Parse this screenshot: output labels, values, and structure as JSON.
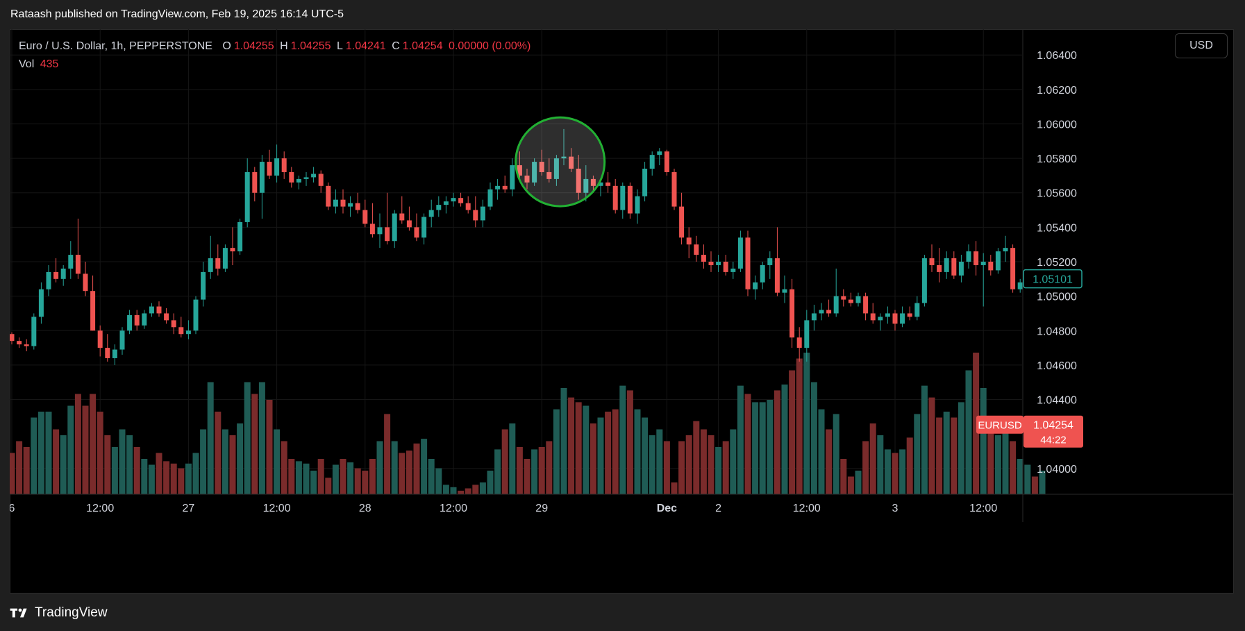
{
  "publish_bar": {
    "text": "Rataash published on TradingView.com, Feb 19, 2025 16:14 UTC-5"
  },
  "legend": {
    "symbol": "Euro / U.S. Dollar, 1h, PEPPERSTONE",
    "o_label": "O",
    "o_value": "1.04255",
    "h_label": "H",
    "h_value": "1.04255",
    "l_label": "L",
    "l_value": "1.04241",
    "c_label": "C",
    "c_value": "1.04254",
    "change": "0.00000 (0.00%)",
    "vol_label": "Vol",
    "vol_value": "435"
  },
  "currency_button": {
    "label": "USD"
  },
  "footer": {
    "brand": "TradingView"
  },
  "colors": {
    "up": "#26a69a",
    "down": "#ef5350",
    "vol_up": "#1f5c55",
    "vol_down": "#7a2b2b",
    "grid": "#161616",
    "axis_text": "#d1d4dc",
    "highlight_ring": "#22b033"
  },
  "chart_data": {
    "type": "candlestick",
    "title": "Euro / U.S. Dollar, 1h, PEPPERSTONE",
    "y_axis": {
      "range": [
        1.0385,
        1.0655
      ],
      "ticks": [
        "1.06400",
        "1.06200",
        "1.06000",
        "1.05800",
        "1.05600",
        "1.05400",
        "1.05200",
        "1.05000",
        "1.04800",
        "1.04600",
        "1.04400",
        "1.04000"
      ]
    },
    "x_axis": {
      "ticks": [
        {
          "label": "6",
          "index": 0
        },
        {
          "label": "12:00",
          "index": 12
        },
        {
          "label": "27",
          "index": 24
        },
        {
          "label": "12:00",
          "index": 36
        },
        {
          "label": "28",
          "index": 48
        },
        {
          "label": "12:00",
          "index": 60
        },
        {
          "label": "29",
          "index": 72
        },
        {
          "label": "Dec",
          "index": 89,
          "bold": true
        },
        {
          "label": "2",
          "index": 96
        },
        {
          "label": "12:00",
          "index": 108
        },
        {
          "label": "3",
          "index": 120
        },
        {
          "label": "12:00",
          "index": 132
        }
      ]
    },
    "price_labels": {
      "last_price": "1.05101",
      "symbol_tag": "EURUSD",
      "current_price": "1.04254",
      "countdown": "44:22"
    },
    "highlight": {
      "center_index": 74.5,
      "center_price": 1.0578,
      "note": "circled wick rejection"
    },
    "candles": [
      [
        1.0478,
        1.0479,
        1.0472,
        1.0474,
        0.35
      ],
      [
        1.0474,
        1.0476,
        1.047,
        1.0472,
        0.45
      ],
      [
        1.0472,
        1.0475,
        1.0468,
        1.0471,
        0.4
      ],
      [
        1.0471,
        1.049,
        1.0469,
        1.0488,
        0.65
      ],
      [
        1.0488,
        1.0508,
        1.0484,
        1.0504,
        0.7
      ],
      [
        1.0504,
        1.0518,
        1.05,
        1.0514,
        0.7
      ],
      [
        1.0514,
        1.0522,
        1.0508,
        1.051,
        0.55
      ],
      [
        1.051,
        1.0518,
        1.0506,
        1.0516,
        0.5
      ],
      [
        1.0516,
        1.0532,
        1.051,
        1.0524,
        0.75
      ],
      [
        1.0524,
        1.0545,
        1.051,
        1.0513,
        0.85
      ],
      [
        1.0513,
        1.052,
        1.05,
        1.0503,
        0.75
      ],
      [
        1.0503,
        1.0512,
        1.048,
        1.048,
        0.85
      ],
      [
        1.048,
        1.0483,
        1.0465,
        1.047,
        0.7
      ],
      [
        1.047,
        1.0478,
        1.0462,
        1.0464,
        0.5
      ],
      [
        1.0464,
        1.0472,
        1.046,
        1.0469,
        0.4
      ],
      [
        1.0469,
        1.0482,
        1.0466,
        1.048,
        0.55
      ],
      [
        1.048,
        1.0492,
        1.0478,
        1.0489,
        0.5
      ],
      [
        1.0489,
        1.0492,
        1.048,
        1.0483,
        0.4
      ],
      [
        1.0483,
        1.0492,
        1.0481,
        1.049,
        0.3
      ],
      [
        1.049,
        1.0496,
        1.0488,
        1.0494,
        0.25
      ],
      [
        1.0494,
        1.0497,
        1.0488,
        1.049,
        0.35
      ],
      [
        1.049,
        1.0493,
        1.0484,
        1.0486,
        0.28
      ],
      [
        1.0486,
        1.049,
        1.0478,
        1.0482,
        0.26
      ],
      [
        1.0482,
        1.0488,
        1.0476,
        1.0478,
        0.22
      ],
      [
        1.0478,
        1.0486,
        1.0475,
        1.048,
        0.26
      ],
      [
        1.048,
        1.05,
        1.0478,
        1.0498,
        0.35
      ],
      [
        1.0498,
        1.052,
        1.0494,
        1.0514,
        0.55
      ],
      [
        1.0514,
        1.0535,
        1.051,
        1.0522,
        0.95
      ],
      [
        1.0522,
        1.053,
        1.0512,
        1.0516,
        0.7
      ],
      [
        1.0516,
        1.053,
        1.0514,
        1.0528,
        0.55
      ],
      [
        1.0528,
        1.054,
        1.0518,
        1.0526,
        0.5
      ],
      [
        1.0526,
        1.0545,
        1.0524,
        1.0543,
        0.6
      ],
      [
        1.0543,
        1.058,
        1.054,
        1.0572,
        0.95
      ],
      [
        1.0572,
        1.0575,
        1.0555,
        1.056,
        0.85
      ],
      [
        1.056,
        1.0582,
        1.0545,
        1.0578,
        0.95
      ],
      [
        1.0578,
        1.0585,
        1.0568,
        1.057,
        0.8
      ],
      [
        1.057,
        1.0588,
        1.0566,
        1.058,
        0.55
      ],
      [
        1.058,
        1.0584,
        1.0568,
        1.0572,
        0.45
      ],
      [
        1.0572,
        1.0575,
        1.0563,
        1.0566,
        0.3
      ],
      [
        1.0566,
        1.057,
        1.0562,
        1.0568,
        0.28
      ],
      [
        1.0568,
        1.0572,
        1.0564,
        1.0569,
        0.26
      ],
      [
        1.0569,
        1.0575,
        1.0566,
        1.0571,
        0.2
      ],
      [
        1.0571,
        1.0573,
        1.056,
        1.0564,
        0.3
      ],
      [
        1.0564,
        1.0566,
        1.055,
        1.0552,
        0.14
      ],
      [
        1.0552,
        1.0562,
        1.0548,
        1.0556,
        0.25
      ],
      [
        1.0556,
        1.0562,
        1.0548,
        1.0552,
        0.3
      ],
      [
        1.0552,
        1.0558,
        1.0546,
        1.0554,
        0.27
      ],
      [
        1.0554,
        1.056,
        1.0548,
        1.055,
        0.22
      ],
      [
        1.055,
        1.0556,
        1.054,
        1.0542,
        0.2
      ],
      [
        1.0542,
        1.0554,
        1.0534,
        1.0536,
        0.3
      ],
      [
        1.0536,
        1.0548,
        1.0528,
        1.054,
        0.45
      ],
      [
        1.054,
        1.056,
        1.053,
        1.0532,
        0.68
      ],
      [
        1.0532,
        1.055,
        1.0528,
        1.0548,
        0.45
      ],
      [
        1.0548,
        1.0558,
        1.0542,
        1.0544,
        0.35
      ],
      [
        1.0544,
        1.0552,
        1.0538,
        1.054,
        0.37
      ],
      [
        1.054,
        1.0548,
        1.0532,
        1.0534,
        0.43
      ],
      [
        1.0534,
        1.0548,
        1.053,
        1.0546,
        0.47
      ],
      [
        1.0546,
        1.0556,
        1.054,
        1.055,
        0.3
      ],
      [
        1.055,
        1.0558,
        1.0546,
        1.0553,
        0.22
      ],
      [
        1.0553,
        1.0558,
        1.0548,
        1.0555,
        0.08
      ],
      [
        1.0555,
        1.056,
        1.0552,
        1.0557,
        0.06
      ],
      [
        1.0557,
        1.056,
        1.0552,
        1.0554,
        0.03
      ],
      [
        1.0554,
        1.0558,
        1.0548,
        1.055,
        0.05
      ],
      [
        1.055,
        1.0558,
        1.054,
        1.0544,
        0.08
      ],
      [
        1.0544,
        1.0556,
        1.054,
        1.0552,
        0.1
      ],
      [
        1.0552,
        1.0566,
        1.055,
        1.0562,
        0.2
      ],
      [
        1.0562,
        1.0568,
        1.0556,
        1.0564,
        0.38
      ],
      [
        1.0564,
        1.057,
        1.056,
        1.0562,
        0.55
      ],
      [
        1.0562,
        1.058,
        1.0558,
        1.0576,
        0.6
      ],
      [
        1.0576,
        1.0584,
        1.0568,
        1.057,
        0.4
      ],
      [
        1.057,
        1.0574,
        1.0562,
        1.0566,
        0.3
      ],
      [
        1.0566,
        1.058,
        1.0564,
        1.0578,
        0.38
      ],
      [
        1.0578,
        1.0585,
        1.057,
        1.0572,
        0.4
      ],
      [
        1.0572,
        1.058,
        1.0566,
        1.0568,
        0.45
      ],
      [
        1.0568,
        1.0582,
        1.0564,
        1.058,
        0.72
      ],
      [
        1.058,
        1.0597,
        1.0576,
        1.0581,
        0.9
      ],
      [
        1.0581,
        1.0586,
        1.0572,
        1.0574,
        0.82
      ],
      [
        1.0574,
        1.0582,
        1.0556,
        1.056,
        0.78
      ],
      [
        1.056,
        1.0576,
        1.0555,
        1.0568,
        0.75
      ],
      [
        1.0568,
        1.057,
        1.056,
        1.0564,
        0.6
      ],
      [
        1.0564,
        1.0568,
        1.0558,
        1.0566,
        0.65
      ],
      [
        1.0566,
        1.0572,
        1.056,
        1.0564,
        0.7
      ],
      [
        1.0564,
        1.0568,
        1.0548,
        1.055,
        0.72
      ],
      [
        1.055,
        1.0566,
        1.0545,
        1.0564,
        0.92
      ],
      [
        1.0564,
        1.0566,
        1.0545,
        1.0548,
        0.88
      ],
      [
        1.0548,
        1.0562,
        1.0542,
        1.0558,
        0.72
      ],
      [
        1.0558,
        1.0578,
        1.0555,
        1.0574,
        0.65
      ],
      [
        1.0574,
        1.0584,
        1.057,
        1.0582,
        0.5
      ],
      [
        1.0582,
        1.0586,
        1.0576,
        1.0584,
        0.55
      ],
      [
        1.0584,
        1.0585,
        1.057,
        1.0572,
        0.45
      ],
      [
        1.0572,
        1.0574,
        1.055,
        1.0552,
        0.1
      ],
      [
        1.0552,
        1.056,
        1.053,
        1.0534,
        0.45
      ],
      [
        1.0534,
        1.054,
        1.0522,
        1.053,
        0.5
      ],
      [
        1.053,
        1.0535,
        1.052,
        1.0524,
        0.62
      ],
      [
        1.0524,
        1.053,
        1.0516,
        1.052,
        0.55
      ],
      [
        1.052,
        1.0526,
        1.0514,
        1.0518,
        0.5
      ],
      [
        1.0518,
        1.0524,
        1.0514,
        1.052,
        0.4
      ],
      [
        1.052,
        1.0524,
        1.0512,
        1.0514,
        0.45
      ],
      [
        1.0514,
        1.052,
        1.051,
        1.0516,
        0.55
      ],
      [
        1.0516,
        1.0538,
        1.0514,
        1.0534,
        0.92
      ],
      [
        1.0534,
        1.0538,
        1.05,
        1.0504,
        0.85
      ],
      [
        1.0504,
        1.0512,
        1.0498,
        1.0508,
        0.78
      ],
      [
        1.0508,
        1.052,
        1.0504,
        1.0518,
        0.78
      ],
      [
        1.0518,
        1.0526,
        1.051,
        1.0522,
        0.8
      ],
      [
        1.0522,
        1.054,
        1.05,
        1.0502,
        0.88
      ],
      [
        1.0502,
        1.0512,
        1.0496,
        1.0504,
        0.93
      ],
      [
        1.0504,
        1.051,
        1.047,
        1.0476,
        1.05
      ],
      [
        1.0476,
        1.0482,
        1.0462,
        1.047,
        1.15
      ],
      [
        1.047,
        1.0492,
        1.0462,
        1.0486,
        1.2
      ],
      [
        1.0486,
        1.0495,
        1.048,
        1.049,
        0.95
      ],
      [
        1.049,
        1.0496,
        1.0486,
        1.0492,
        0.72
      ],
      [
        1.0492,
        1.0498,
        1.0488,
        1.049,
        0.55
      ],
      [
        1.049,
        1.0516,
        1.0488,
        1.05,
        0.68
      ],
      [
        1.05,
        1.0504,
        1.0494,
        1.0498,
        0.3
      ],
      [
        1.0498,
        1.0502,
        1.0494,
        1.0496,
        0.15
      ],
      [
        1.0496,
        1.0502,
        1.0494,
        1.05,
        0.2
      ],
      [
        1.05,
        1.0502,
        1.0486,
        1.049,
        0.45
      ],
      [
        1.049,
        1.0496,
        1.0484,
        1.0486,
        0.6
      ],
      [
        1.0486,
        1.049,
        1.048,
        1.0488,
        0.5
      ],
      [
        1.0488,
        1.0494,
        1.0484,
        1.049,
        0.38
      ],
      [
        1.049,
        1.0492,
        1.048,
        1.0484,
        0.35
      ],
      [
        1.0484,
        1.0494,
        1.0482,
        1.049,
        0.38
      ],
      [
        1.049,
        1.0494,
        1.0486,
        1.0488,
        0.48
      ],
      [
        1.0488,
        1.05,
        1.0486,
        1.0496,
        0.68
      ],
      [
        1.0496,
        1.0524,
        1.0494,
        1.0522,
        0.92
      ],
      [
        1.0522,
        1.053,
        1.0514,
        1.0518,
        0.82
      ],
      [
        1.0518,
        1.0528,
        1.0508,
        1.0514,
        0.65
      ],
      [
        1.0514,
        1.0526,
        1.051,
        1.0522,
        0.7
      ],
      [
        1.0522,
        1.0526,
        1.051,
        1.0512,
        0.65
      ],
      [
        1.0512,
        1.0524,
        1.0508,
        1.052,
        0.78
      ],
      [
        1.052,
        1.053,
        1.0516,
        1.0526,
        1.05
      ],
      [
        1.0526,
        1.0532,
        1.0512,
        1.0518,
        1.2
      ],
      [
        1.0518,
        1.0525,
        1.0494,
        1.052,
        0.9
      ],
      [
        1.052,
        1.0524,
        1.0512,
        1.0515,
        0.65
      ],
      [
        1.0515,
        1.0528,
        1.0513,
        1.0526,
        0.5
      ],
      [
        1.0526,
        1.0535,
        1.052,
        1.0528,
        0.55
      ],
      [
        1.0528,
        1.053,
        1.0502,
        1.0504,
        0.45
      ],
      [
        1.0504,
        1.051,
        1.0502,
        1.0508,
        0.3
      ],
      [
        1.0508,
        1.0512,
        1.0505,
        1.0509,
        0.25
      ],
      [
        1.0509,
        1.051,
        1.0506,
        1.0508,
        0.15
      ],
      [
        1.0508,
        1.0512,
        1.0506,
        1.051,
        0.2
      ]
    ]
  }
}
